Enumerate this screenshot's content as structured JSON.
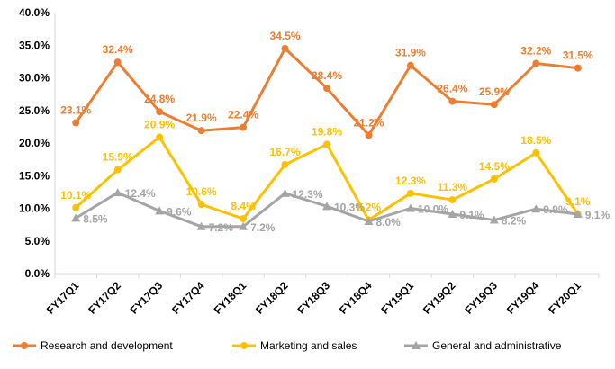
{
  "chart_data": {
    "type": "line",
    "title": "",
    "xlabel": "",
    "ylabel": "",
    "categories": [
      "FY17Q1",
      "FY17Q2",
      "FY17Q3",
      "FY17Q4",
      "FY18Q1",
      "FY18Q2",
      "FY18Q3",
      "FY18Q4",
      "FY19Q1",
      "FY19Q2",
      "FY19Q3",
      "FY19Q4",
      "FY20Q1"
    ],
    "ylim": [
      0,
      40
    ],
    "yticks": [
      "0.0%",
      "5.0%",
      "10.0%",
      "15.0%",
      "20.0%",
      "25.0%",
      "30.0%",
      "35.0%",
      "40.0%"
    ],
    "grid": false,
    "legend_position": "bottom",
    "series": [
      {
        "name": "Research and development",
        "color": "#ED7D31",
        "marker": "circle",
        "values": [
          23.1,
          32.4,
          24.8,
          21.9,
          22.4,
          34.5,
          28.4,
          21.2,
          31.9,
          26.4,
          25.9,
          32.2,
          31.5
        ],
        "labels": [
          "23.1%",
          "32.4%",
          "24.8%",
          "21.9%",
          "22.4%",
          "34.5%",
          "28.4%",
          "21.2%",
          "31.9%",
          "26.4%",
          "25.9%",
          "32.2%",
          "31.5%"
        ]
      },
      {
        "name": "Marketing and sales",
        "color": "#FFC000",
        "marker": "circle",
        "values": [
          10.1,
          15.9,
          20.9,
          10.6,
          8.4,
          16.7,
          19.8,
          8.2,
          12.3,
          11.3,
          14.5,
          18.5,
          9.1
        ],
        "labels": [
          "10.1%",
          "15.9%",
          "20.9%",
          "10.6%",
          "8.4%",
          "16.7%",
          "19.8%",
          "8.2%",
          "12.3%",
          "11.3%",
          "14.5%",
          "18.5%",
          "9.1%"
        ]
      },
      {
        "name": "General and administrative",
        "color": "#A5A5A5",
        "marker": "triangle",
        "values": [
          8.5,
          12.4,
          9.6,
          7.2,
          7.2,
          12.3,
          10.3,
          8.0,
          10.0,
          9.1,
          8.2,
          9.9,
          9.1
        ],
        "labels": [
          "8.5%",
          "12.4%",
          "9.6%",
          "7.2%",
          "7.2%",
          "12.3%",
          "10.3%",
          "8.0%",
          "10.0%",
          "9.1%",
          "8.2%",
          "9.9%",
          "9.1%"
        ]
      }
    ]
  }
}
